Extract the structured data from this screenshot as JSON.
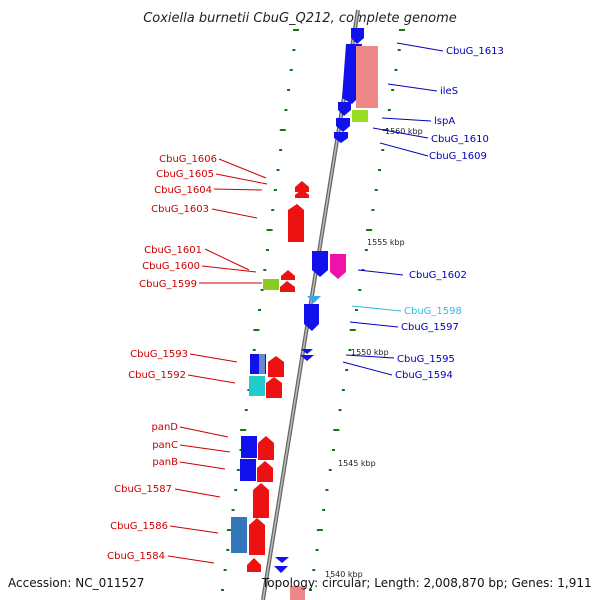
{
  "header": {
    "title": "Coxiella burnetii CbuG_Q212, complete genome"
  },
  "footer": {
    "accession": "Accession: NC_011527",
    "topology": "Topology: circular; Length: 2,008,870 bp; Genes: 1,911"
  },
  "colors": {
    "forward_gene": "#ee1111",
    "reverse_gene": "#1111ee",
    "label_left": "#cc0000",
    "label_right": "#0000bb",
    "label_cyan": "#33bbdd",
    "backbone": "#888888",
    "tick": "#117711"
  },
  "scale": {
    "marks": [
      "1560 kbp",
      "1555 kbp",
      "1550 kbp",
      "1545 kbp",
      "1540 kbp"
    ]
  },
  "left_labels": [
    "CbuG_1606",
    "CbuG_1605",
    "CbuG_1604",
    "CbuG_1603",
    "CbuG_1601",
    "CbuG_1600",
    "CbuG_1599",
    "CbuG_1593",
    "CbuG_1592",
    "panD",
    "panC",
    "panB",
    "CbuG_1587",
    "CbuG_1586",
    "CbuG_1584"
  ],
  "right_labels": [
    "CbuG_1613",
    "ileS",
    "lspA",
    "CbuG_1610",
    "CbuG_1609",
    "CbuG_1602",
    "CbuG_1598",
    "CbuG_1597",
    "CbuG_1595",
    "CbuG_1594"
  ]
}
